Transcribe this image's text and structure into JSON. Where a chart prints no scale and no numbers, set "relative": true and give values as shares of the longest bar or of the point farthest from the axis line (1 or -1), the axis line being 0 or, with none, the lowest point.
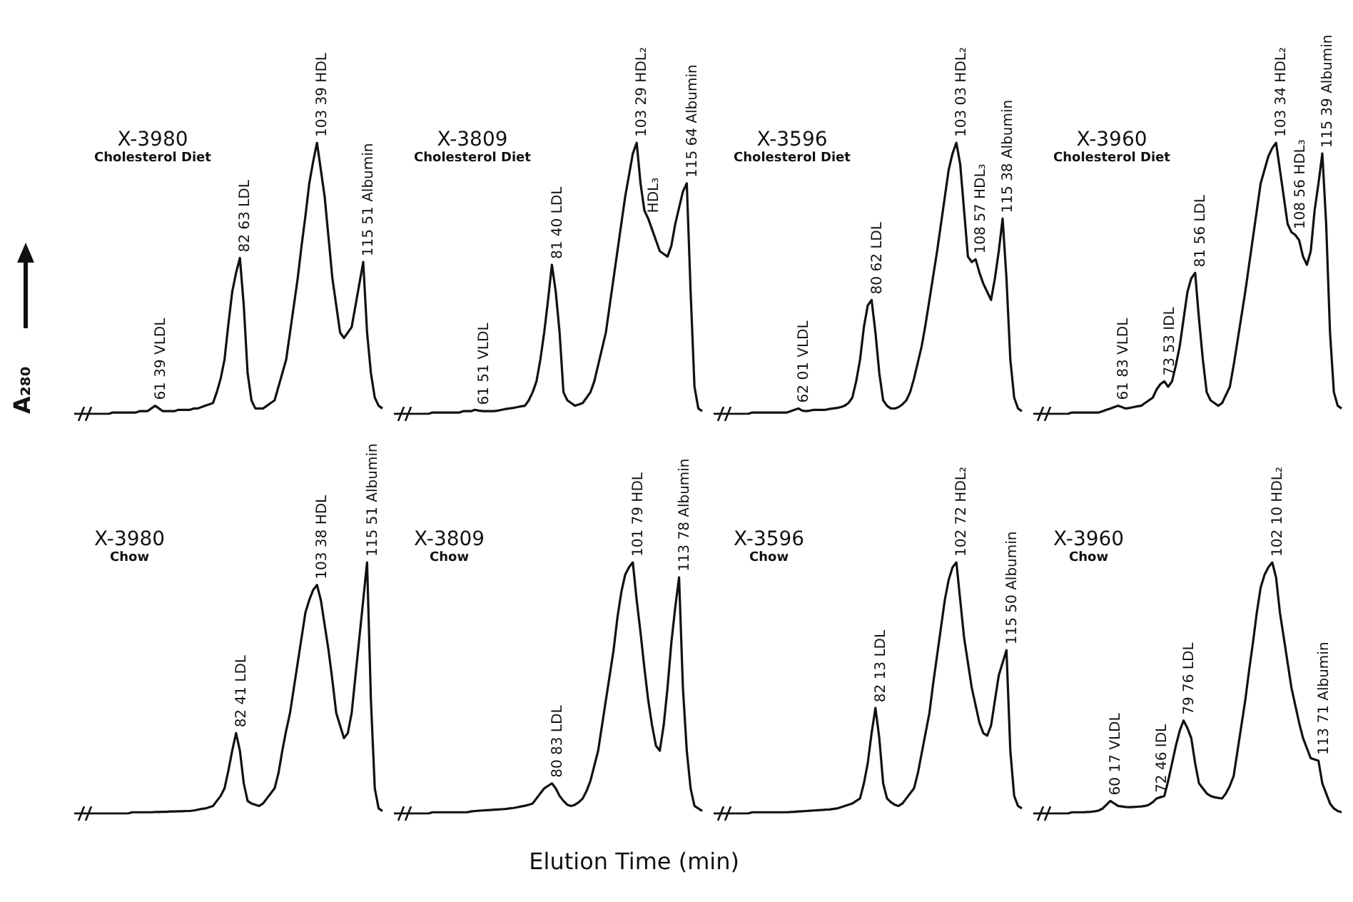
{
  "chart_data": [
    {
      "type": "line",
      "title": "X-3980",
      "subtitle": "Cholesterol Diet",
      "ylabel": "A₂₈₀",
      "relative": true,
      "tick_labels": false,
      "categories": [
        null,
        null,
        null,
        null,
        null,
        null,
        null,
        null,
        null,
        null,
        null,
        null,
        null,
        null,
        null,
        null,
        null,
        null,
        null,
        null,
        null,
        null,
        null,
        null,
        null,
        null,
        null,
        null,
        null,
        null,
        null,
        null,
        null,
        null,
        null,
        null,
        null,
        null,
        null,
        null,
        null,
        null,
        null,
        null,
        null,
        null,
        null,
        null,
        null,
        null,
        null,
        null,
        null,
        null,
        null,
        null,
        null,
        null,
        null,
        null,
        null,
        null,
        null,
        null,
        null,
        null,
        null,
        null,
        null,
        null,
        null,
        null,
        null,
        null,
        null,
        null,
        null,
        null,
        null,
        null,
        null
      ],
      "series": [
        {
          "color": "#111111",
          "values": [
            0,
            0,
            0,
            0,
            0,
            0,
            0,
            0,
            0,
            0,
            0.005,
            0.005,
            0.005,
            0.005,
            0.005,
            0.005,
            0.005,
            0.01,
            0.01,
            0.01,
            0.02,
            0.03,
            0.02,
            0.01,
            0.01,
            0.01,
            0.01,
            0.015,
            0.015,
            0.015,
            0.015,
            0.02,
            0.02,
            0.025,
            0.03,
            0.035,
            0.04,
            0.08,
            0.13,
            0.2,
            0.33,
            0.45,
            0.52,
            0.575,
            0.4,
            0.15,
            0.05,
            0.02,
            0.02,
            0.02,
            0.03,
            0.04,
            0.05,
            0.1,
            0.15,
            0.2,
            0.3,
            0.4,
            0.5,
            0.62,
            0.73,
            0.85,
            0.93,
            1,
            0.9,
            0.8,
            0.65,
            0.5,
            0.4,
            0.3,
            0.28,
            0.3,
            0.32,
            0.4,
            0.48,
            0.56,
            0.3,
            0.15,
            0.06,
            0.03,
            0.02
          ]
        }
      ],
      "annotations": [
        {
          "text": "61 39 VLDL",
          "y": 0.03
        },
        {
          "text": "82 63 LDL",
          "y": 0.575
        },
        {
          "text": "103 39 HDL",
          "y": 1
        },
        {
          "text": "115 51 Albumin",
          "y": 0.56
        }
      ]
    },
    {
      "type": "line",
      "title": "X-3809",
      "subtitle": "Cholesterol Diet",
      "relative": true,
      "tick_labels": false,
      "categories": [
        null,
        null,
        null,
        null,
        null,
        null,
        null,
        null,
        null,
        null,
        null,
        null,
        null,
        null,
        null,
        null,
        null,
        null,
        null,
        null,
        null,
        null,
        null,
        null,
        null,
        null,
        null,
        null,
        null,
        null,
        null,
        null,
        null,
        null,
        null,
        null,
        null,
        null,
        null,
        null,
        null,
        null,
        null,
        null,
        null,
        null,
        null,
        null,
        null,
        null,
        null,
        null,
        null,
        null,
        null,
        null,
        null,
        null,
        null,
        null,
        null,
        null,
        null,
        null,
        null,
        null,
        null,
        null,
        null,
        null,
        null,
        null,
        null,
        null,
        null,
        null,
        null,
        null,
        null,
        null,
        null
      ],
      "series": [
        {
          "color": "#111111",
          "values": [
            0,
            0,
            0,
            0,
            0,
            0,
            0,
            0,
            0,
            0,
            0.005,
            0.005,
            0.005,
            0.005,
            0.005,
            0.005,
            0.005,
            0.005,
            0.01,
            0.01,
            0.01,
            0.015,
            0.012,
            0.01,
            0.01,
            0.01,
            0.01,
            0.012,
            0.015,
            0.018,
            0.02,
            0.022,
            0.025,
            0.028,
            0.03,
            0.05,
            0.08,
            0.12,
            0.2,
            0.3,
            0.42,
            0.55,
            0.45,
            0.3,
            0.08,
            0.05,
            0.04,
            0.03,
            0.035,
            0.04,
            0.06,
            0.08,
            0.12,
            0.18,
            0.24,
            0.3,
            0.4,
            0.5,
            0.6,
            0.7,
            0.8,
            0.88,
            0.96,
            1,
            0.85,
            0.75,
            0.72,
            0.68,
            0.64,
            0.6,
            0.59,
            0.58,
            0.62,
            0.7,
            0.76,
            0.82,
            0.85,
            0.45,
            0.1,
            0.02,
            0.01
          ]
        }
      ],
      "annotations": [
        {
          "text": "61 51 VLDL",
          "y": 0.012
        },
        {
          "text": "81 40 LDL",
          "y": 0.55
        },
        {
          "text": "103 29 HDL₂",
          "y": 1
        },
        {
          "text": "HDL₃",
          "y": 0.72
        },
        {
          "text": "115 64 Albumin",
          "y": 0.85
        }
      ]
    },
    {
      "type": "line",
      "title": "X-3596",
      "subtitle": "Cholesterol Diet",
      "relative": true,
      "tick_labels": false,
      "categories": [
        null,
        null,
        null,
        null,
        null,
        null,
        null,
        null,
        null,
        null,
        null,
        null,
        null,
        null,
        null,
        null,
        null,
        null,
        null,
        null,
        null,
        null,
        null,
        null,
        null,
        null,
        null,
        null,
        null,
        null,
        null,
        null,
        null,
        null,
        null,
        null,
        null,
        null,
        null,
        null,
        null,
        null,
        null,
        null,
        null,
        null,
        null,
        null,
        null,
        null,
        null,
        null,
        null,
        null,
        null,
        null,
        null,
        null,
        null,
        null,
        null,
        null,
        null,
        null,
        null,
        null,
        null,
        null,
        null,
        null,
        null,
        null,
        null,
        null,
        null,
        null,
        null,
        null,
        null,
        null,
        null
      ],
      "series": [
        {
          "color": "#111111",
          "values": [
            0,
            0,
            0,
            0,
            0,
            0,
            0,
            0,
            0,
            0,
            0.005,
            0.005,
            0.005,
            0.005,
            0.005,
            0.005,
            0.005,
            0.005,
            0.005,
            0.005,
            0.01,
            0.015,
            0.02,
            0.012,
            0.01,
            0.012,
            0.015,
            0.015,
            0.015,
            0.015,
            0.018,
            0.02,
            0.022,
            0.025,
            0.03,
            0.04,
            0.06,
            0.12,
            0.2,
            0.32,
            0.4,
            0.42,
            0.3,
            0.15,
            0.05,
            0.03,
            0.02,
            0.02,
            0.025,
            0.035,
            0.05,
            0.08,
            0.13,
            0.19,
            0.25,
            0.33,
            0.42,
            0.51,
            0.6,
            0.7,
            0.8,
            0.9,
            0.96,
            1,
            0.92,
            0.75,
            0.58,
            0.56,
            0.57,
            0.52,
            0.48,
            0.45,
            0.42,
            0.5,
            0.6,
            0.72,
            0.5,
            0.2,
            0.06,
            0.02,
            0.01
          ]
        }
      ],
      "annotations": [
        {
          "text": "62 01 VLDL",
          "y": 0.02
        },
        {
          "text": "80 62 LDL",
          "y": 0.42
        },
        {
          "text": "103 03 HDL₂",
          "y": 1
        },
        {
          "text": "108 57 HDL₃",
          "y": 0.57
        },
        {
          "text": "115 38 Albumin",
          "y": 0.72
        }
      ]
    },
    {
      "type": "line",
      "title": "X-3960",
      "subtitle": "Cholesterol Diet",
      "relative": true,
      "tick_labels": false,
      "categories": [
        null,
        null,
        null,
        null,
        null,
        null,
        null,
        null,
        null,
        null,
        null,
        null,
        null,
        null,
        null,
        null,
        null,
        null,
        null,
        null,
        null,
        null,
        null,
        null,
        null,
        null,
        null,
        null,
        null,
        null,
        null,
        null,
        null,
        null,
        null,
        null,
        null,
        null,
        null,
        null,
        null,
        null,
        null,
        null,
        null,
        null,
        null,
        null,
        null,
        null,
        null,
        null,
        null,
        null,
        null,
        null,
        null,
        null,
        null,
        null,
        null,
        null,
        null,
        null,
        null,
        null,
        null,
        null,
        null,
        null,
        null,
        null,
        null,
        null,
        null,
        null,
        null,
        null,
        null,
        null,
        null
      ],
      "series": [
        {
          "color": "#111111",
          "values": [
            0,
            0,
            0,
            0,
            0,
            0,
            0,
            0,
            0,
            0,
            0.005,
            0.005,
            0.005,
            0.005,
            0.005,
            0.005,
            0.005,
            0.005,
            0.01,
            0.015,
            0.02,
            0.025,
            0.03,
            0.025,
            0.02,
            0.022,
            0.025,
            0.028,
            0.03,
            0.04,
            0.05,
            0.06,
            0.09,
            0.11,
            0.12,
            0.1,
            0.12,
            0.18,
            0.25,
            0.35,
            0.45,
            0.5,
            0.52,
            0.35,
            0.2,
            0.08,
            0.05,
            0.04,
            0.03,
            0.04,
            0.07,
            0.1,
            0.18,
            0.27,
            0.36,
            0.45,
            0.55,
            0.65,
            0.75,
            0.85,
            0.9,
            0.95,
            0.98,
            1,
            0.9,
            0.8,
            0.7,
            0.67,
            0.66,
            0.64,
            0.58,
            0.55,
            0.6,
            0.75,
            0.85,
            0.96,
            0.7,
            0.3,
            0.08,
            0.03,
            0.02
          ]
        }
      ],
      "annotations": [
        {
          "text": "61 83 VLDL",
          "y": 0.03
        },
        {
          "text": "73 53 IDL",
          "y": 0.12
        },
        {
          "text": "81 56 LDL",
          "y": 0.52
        },
        {
          "text": "103 34 HDL₂",
          "y": 1
        },
        {
          "text": "108 56 HDL₃",
          "y": 0.66
        },
        {
          "text": "115 39 Albumin",
          "y": 0.96
        }
      ]
    },
    {
      "type": "line",
      "title": "X-3980",
      "subtitle": "Chow",
      "relative": true,
      "tick_labels": false,
      "categories": [
        null,
        null,
        null,
        null,
        null,
        null,
        null,
        null,
        null,
        null,
        null,
        null,
        null,
        null,
        null,
        null,
        null,
        null,
        null,
        null,
        null,
        null,
        null,
        null,
        null,
        null,
        null,
        null,
        null,
        null,
        null,
        null,
        null,
        null,
        null,
        null,
        null,
        null,
        null,
        null,
        null,
        null,
        null,
        null,
        null,
        null,
        null,
        null,
        null,
        null,
        null,
        null,
        null,
        null,
        null,
        null,
        null,
        null,
        null,
        null,
        null,
        null,
        null,
        null,
        null,
        null,
        null,
        null,
        null,
        null,
        null,
        null,
        null,
        null,
        null,
        null,
        null,
        null,
        null,
        null,
        null
      ],
      "series": [
        {
          "color": "#111111",
          "values": [
            0,
            0,
            0,
            0,
            0,
            0,
            0,
            0,
            0,
            0,
            0,
            0,
            0,
            0,
            0,
            0.005,
            0.005,
            0.005,
            0.005,
            0.005,
            0.005,
            0.006,
            0.006,
            0.007,
            0.007,
            0.008,
            0.008,
            0.009,
            0.009,
            0.01,
            0.01,
            0.012,
            0.015,
            0.018,
            0.02,
            0.025,
            0.03,
            0.05,
            0.07,
            0.1,
            0.17,
            0.25,
            0.32,
            0.25,
            0.12,
            0.05,
            0.04,
            0.035,
            0.03,
            0.04,
            0.06,
            0.08,
            0.1,
            0.16,
            0.25,
            0.33,
            0.4,
            0.5,
            0.6,
            0.7,
            0.8,
            0.85,
            0.89,
            0.91,
            0.85,
            0.75,
            0.65,
            0.53,
            0.4,
            0.35,
            0.3,
            0.32,
            0.4,
            0.55,
            0.7,
            0.85,
            1,
            0.45,
            0.1,
            0.02,
            0.01
          ]
        }
      ],
      "annotations": [
        {
          "text": "82 41 LDL",
          "y": 0.32
        },
        {
          "text": "103 38 HDL",
          "y": 0.91
        },
        {
          "text": "115 51 Albumin",
          "y": 1
        }
      ]
    },
    {
      "type": "line",
      "title": "X-3809",
      "subtitle": "Chow",
      "xlabel": "Elution Time (min)",
      "relative": true,
      "tick_labels": false,
      "categories": [
        null,
        null,
        null,
        null,
        null,
        null,
        null,
        null,
        null,
        null,
        null,
        null,
        null,
        null,
        null,
        null,
        null,
        null,
        null,
        null,
        null,
        null,
        null,
        null,
        null,
        null,
        null,
        null,
        null,
        null,
        null,
        null,
        null,
        null,
        null,
        null,
        null,
        null,
        null,
        null,
        null,
        null,
        null,
        null,
        null,
        null,
        null,
        null,
        null,
        null,
        null,
        null,
        null,
        null,
        null,
        null,
        null,
        null,
        null,
        null,
        null,
        null,
        null,
        null,
        null,
        null,
        null,
        null,
        null,
        null,
        null,
        null,
        null,
        null,
        null,
        null,
        null,
        null,
        null,
        null,
        null
      ],
      "series": [
        {
          "color": "#111111",
          "values": [
            0,
            0,
            0,
            0,
            0,
            0,
            0,
            0,
            0,
            0,
            0.005,
            0.005,
            0.005,
            0.005,
            0.005,
            0.005,
            0.005,
            0.005,
            0.005,
            0.005,
            0.008,
            0.01,
            0.011,
            0.012,
            0.013,
            0.014,
            0.015,
            0.016,
            0.017,
            0.018,
            0.02,
            0.022,
            0.025,
            0.028,
            0.031,
            0.035,
            0.04,
            0.06,
            0.08,
            0.1,
            0.11,
            0.12,
            0.1,
            0.07,
            0.05,
            0.035,
            0.03,
            0.035,
            0.045,
            0.06,
            0.09,
            0.13,
            0.19,
            0.25,
            0.35,
            0.45,
            0.55,
            0.65,
            0.78,
            0.88,
            0.95,
            0.98,
            1,
            0.85,
            0.72,
            0.58,
            0.45,
            0.35,
            0.27,
            0.25,
            0.35,
            0.5,
            0.68,
            0.82,
            0.94,
            0.5,
            0.25,
            0.1,
            0.03,
            0.02,
            0.01
          ]
        }
      ],
      "annotations": [
        {
          "text": "80 83 LDL",
          "y": 0.12
        },
        {
          "text": "101 79 HDL",
          "y": 1
        },
        {
          "text": "113 78 Albumin",
          "y": 0.94
        }
      ]
    },
    {
      "type": "line",
      "title": "X-3596",
      "subtitle": "Chow",
      "relative": true,
      "tick_labels": false,
      "categories": [
        null,
        null,
        null,
        null,
        null,
        null,
        null,
        null,
        null,
        null,
        null,
        null,
        null,
        null,
        null,
        null,
        null,
        null,
        null,
        null,
        null,
        null,
        null,
        null,
        null,
        null,
        null,
        null,
        null,
        null,
        null,
        null,
        null,
        null,
        null,
        null,
        null,
        null,
        null,
        null,
        null,
        null,
        null,
        null,
        null,
        null,
        null,
        null,
        null,
        null,
        null,
        null,
        null,
        null,
        null,
        null,
        null,
        null,
        null,
        null,
        null,
        null,
        null,
        null,
        null,
        null,
        null,
        null,
        null,
        null,
        null,
        null,
        null,
        null,
        null,
        null,
        null,
        null,
        null,
        null,
        null
      ],
      "series": [
        {
          "color": "#111111",
          "values": [
            0,
            0,
            0,
            0,
            0,
            0,
            0,
            0,
            0,
            0,
            0.005,
            0.005,
            0.005,
            0.005,
            0.005,
            0.005,
            0.005,
            0.005,
            0.005,
            0.005,
            0.006,
            0.007,
            0.008,
            0.009,
            0.01,
            0.011,
            0.012,
            0.013,
            0.014,
            0.015,
            0.016,
            0.018,
            0.02,
            0.025,
            0.03,
            0.035,
            0.04,
            0.05,
            0.06,
            0.12,
            0.2,
            0.32,
            0.42,
            0.3,
            0.12,
            0.06,
            0.045,
            0.035,
            0.03,
            0.04,
            0.06,
            0.08,
            0.1,
            0.16,
            0.24,
            0.32,
            0.4,
            0.52,
            0.63,
            0.74,
            0.85,
            0.93,
            0.98,
            1,
            0.85,
            0.7,
            0.6,
            0.5,
            0.43,
            0.36,
            0.32,
            0.31,
            0.35,
            0.45,
            0.55,
            0.6,
            0.65,
            0.25,
            0.07,
            0.03,
            0.02
          ]
        }
      ],
      "annotations": [
        {
          "text": "82 13 LDL",
          "y": 0.42
        },
        {
          "text": "102 72 HDL₂",
          "y": 1
        },
        {
          "text": "115 50 Albumin",
          "y": 0.65
        }
      ]
    },
    {
      "type": "line",
      "title": "X-3960",
      "subtitle": "Chow",
      "relative": true,
      "tick_labels": false,
      "categories": [
        null,
        null,
        null,
        null,
        null,
        null,
        null,
        null,
        null,
        null,
        null,
        null,
        null,
        null,
        null,
        null,
        null,
        null,
        null,
        null,
        null,
        null,
        null,
        null,
        null,
        null,
        null,
        null,
        null,
        null,
        null,
        null,
        null,
        null,
        null,
        null,
        null,
        null,
        null,
        null,
        null,
        null,
        null,
        null,
        null,
        null,
        null,
        null,
        null,
        null,
        null,
        null,
        null,
        null,
        null,
        null,
        null,
        null,
        null,
        null,
        null,
        null,
        null,
        null,
        null,
        null,
        null,
        null,
        null,
        null,
        null,
        null,
        null,
        null,
        null,
        null,
        null,
        null,
        null,
        null,
        null
      ],
      "series": [
        {
          "color": "#111111",
          "values": [
            0,
            0,
            0,
            0,
            0,
            0,
            0,
            0,
            0,
            0,
            0.005,
            0.005,
            0.005,
            0.005,
            0.006,
            0.007,
            0.009,
            0.012,
            0.02,
            0.035,
            0.05,
            0.04,
            0.03,
            0.028,
            0.026,
            0.025,
            0.026,
            0.027,
            0.028,
            0.03,
            0.035,
            0.045,
            0.06,
            0.065,
            0.07,
            0.13,
            0.2,
            0.27,
            0.33,
            0.37,
            0.34,
            0.3,
            0.2,
            0.12,
            0.1,
            0.08,
            0.07,
            0.065,
            0.062,
            0.06,
            0.08,
            0.11,
            0.15,
            0.25,
            0.35,
            0.45,
            0.57,
            0.68,
            0.8,
            0.9,
            0.95,
            0.98,
            1,
            0.94,
            0.8,
            0.7,
            0.6,
            0.5,
            0.43,
            0.36,
            0.3,
            0.26,
            0.22,
            0.215,
            0.21,
            0.12,
            0.08,
            0.04,
            0.02,
            0.01,
            0.005
          ]
        }
      ],
      "annotations": [
        {
          "text": "60 17 VLDL",
          "y": 0.05
        },
        {
          "text": "72 46 IDL",
          "y": 0.06
        },
        {
          "text": "79 76 LDL",
          "y": 0.37
        },
        {
          "text": "102 10 HDL₂",
          "y": 1
        },
        {
          "text": "113 71 Albumin",
          "y": 0.21
        }
      ]
    }
  ]
}
